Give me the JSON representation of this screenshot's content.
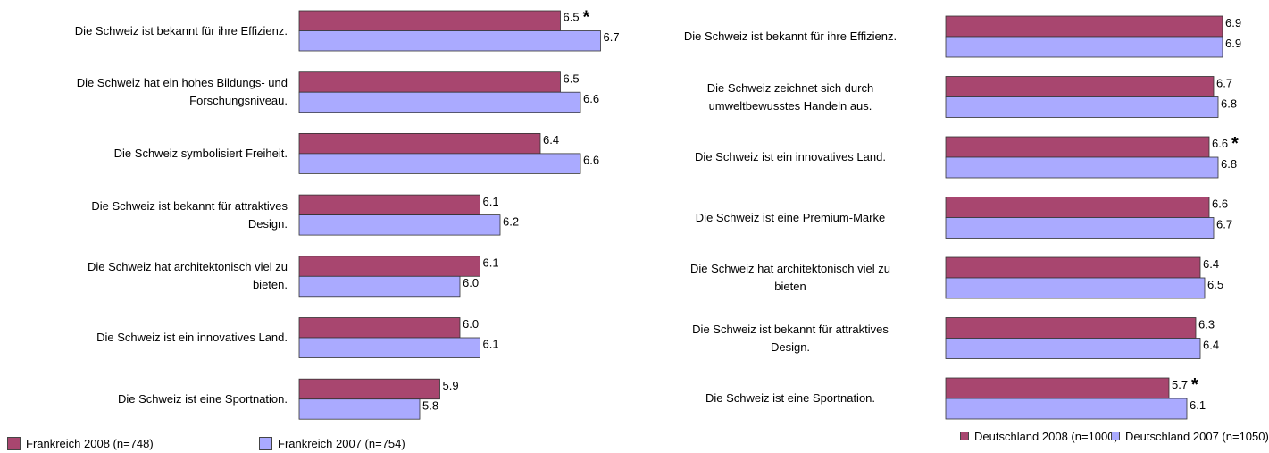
{
  "chart_data": [
    {
      "type": "bar",
      "orientation": "horizontal",
      "categories": [
        "Die Schweiz ist bekannt für ihre Effizienz.",
        "Die Schweiz hat ein hohes Bildungs- und\nForschungsniveau.",
        "Die Schweiz symbolisiert Freiheit.",
        "Die Schweiz ist bekannt für attraktives\nDesign.",
        "Die Schweiz hat architektonisch viel zu\nbieten.",
        "Die Schweiz ist ein innovatives Land.",
        "Die Schweiz ist eine Sportnation."
      ],
      "series": [
        {
          "name": "Frankreich 2008 (n=748)",
          "color": "#a8466f",
          "values": [
            6.5,
            6.5,
            6.4,
            6.1,
            6.1,
            6.0,
            5.9
          ],
          "value_labels": [
            "6.5",
            "6.5",
            "6.4",
            "6.1",
            "6.1",
            "6.0",
            "5.9"
          ],
          "notes": [
            "*",
            null,
            null,
            null,
            null,
            null,
            null
          ]
        },
        {
          "name": "Frankreich 2007 (n=754)",
          "color": "#aaaaff",
          "values": [
            6.7,
            6.6,
            6.6,
            6.2,
            6.0,
            6.1,
            5.8
          ],
          "value_labels": [
            "6.7",
            "6.6",
            "6.6",
            "6.2",
            "6.0",
            "6.1",
            "5.8"
          ]
        }
      ],
      "xlim": [
        5.2,
        7.2
      ],
      "legend": "bottom-left"
    },
    {
      "type": "bar",
      "orientation": "horizontal",
      "categories": [
        "Die Schweiz ist bekannt für ihre Effizienz.",
        "Die Schweiz zeichnet sich durch\numweltbewusstes Handeln aus.",
        "Die Schweiz ist ein innovatives Land.",
        "Die Schweiz ist eine Premium-Marke",
        "Die Schweiz hat architektonisch viel zu\nbieten",
        "Die Schweiz ist bekannt für attraktives\nDesign.",
        "Die Schweiz ist eine Sportnation."
      ],
      "series": [
        {
          "name": "Deutschland 2008 (n=1000)",
          "color": "#a8466f",
          "values": [
            6.9,
            6.7,
            6.6,
            6.6,
            6.4,
            6.3,
            5.7
          ],
          "value_labels": [
            "6.9",
            "6.7",
            "6.6",
            "6.6",
            "6.4",
            "6.3",
            "5.7"
          ],
          "notes": [
            null,
            null,
            "*",
            null,
            null,
            null,
            "*"
          ]
        },
        {
          "name": "Deutschland 2007 (n=1050)",
          "color": "#aaaaff",
          "values": [
            6.9,
            6.8,
            6.8,
            6.7,
            6.5,
            6.4,
            6.1
          ],
          "value_labels": [
            "6.9",
            "6.8",
            "6.8",
            "6.7",
            "6.5",
            "6.4",
            "6.1"
          ]
        }
      ],
      "xlim": [
        0.7,
        7.7
      ],
      "legend": "bottom"
    }
  ]
}
